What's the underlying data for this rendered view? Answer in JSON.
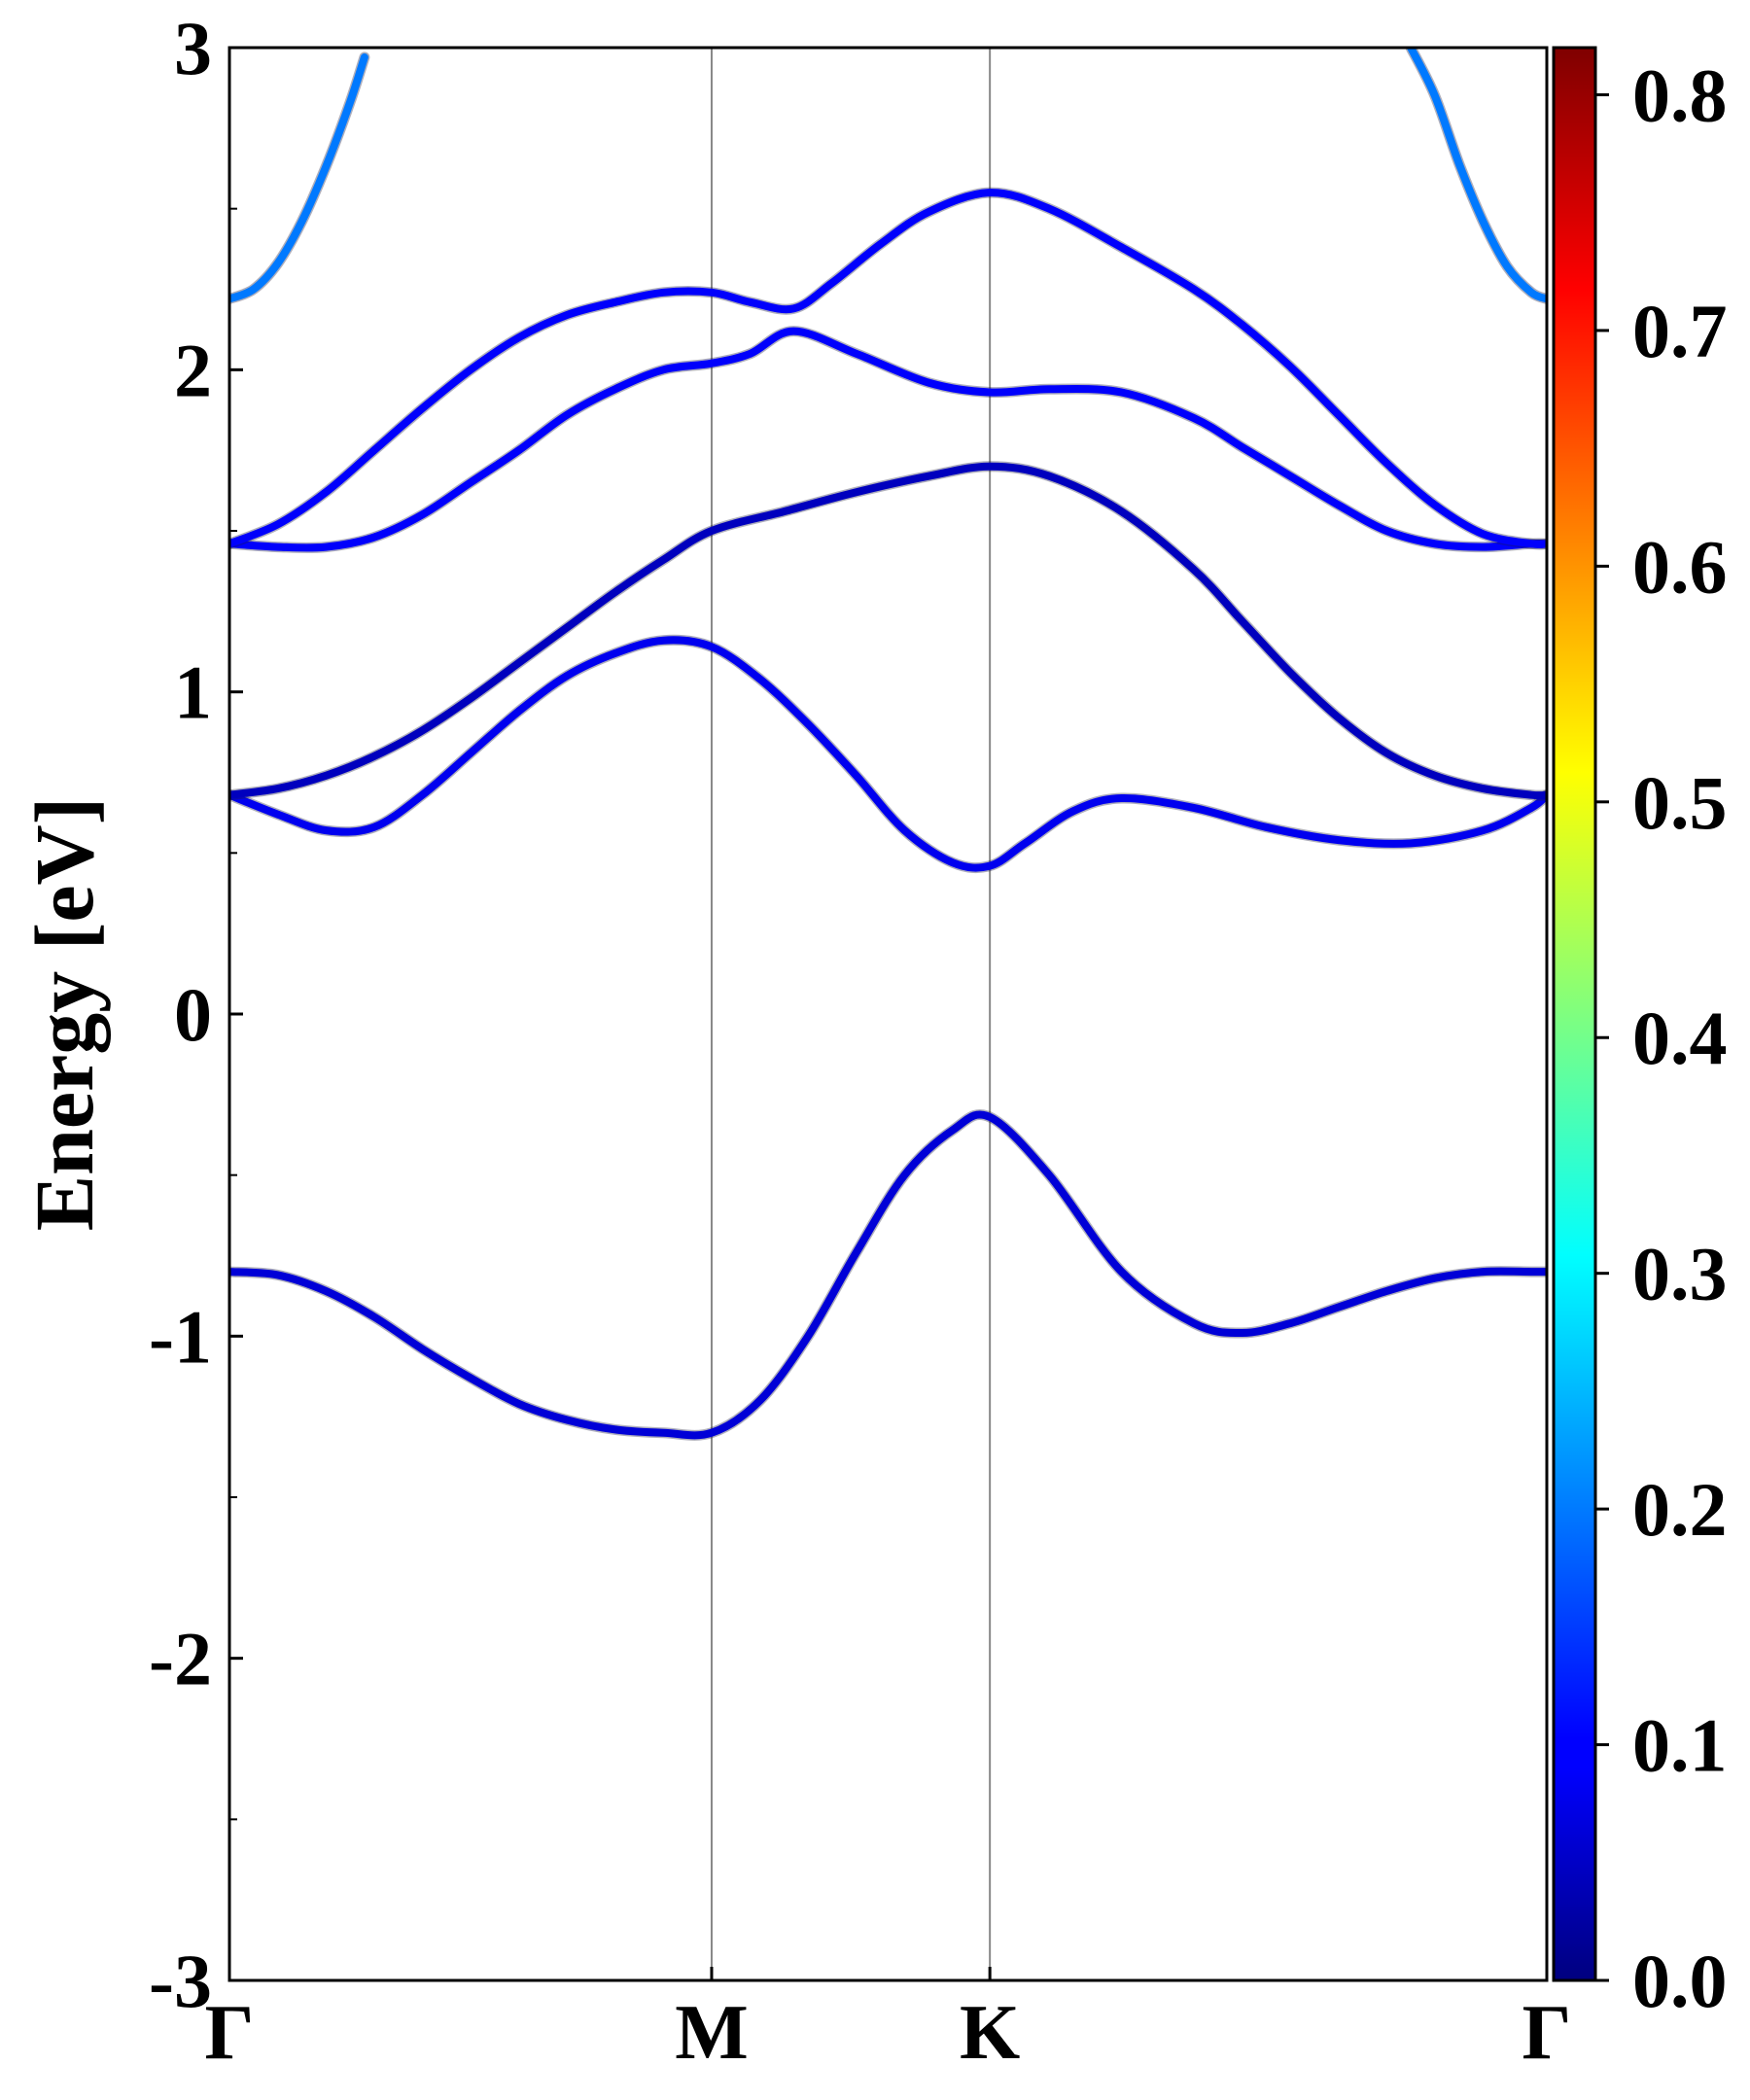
{
  "chart_data": {
    "type": "line",
    "ylabel": "Energy [eV]",
    "ylim": [
      -3,
      3
    ],
    "y_ticks": [
      "3",
      "2",
      "1",
      "0",
      "-1",
      "-2",
      "-3"
    ],
    "y_tick_values": [
      3,
      2,
      1,
      0,
      -1,
      -2,
      -3
    ],
    "x_ticks": [
      "Γ",
      "M",
      "K",
      "Γ"
    ],
    "x_tick_positions": [
      0,
      1,
      1.577,
      2.732
    ],
    "high_symmetry_lines": true,
    "colorbar": {
      "range": [
        0.0,
        0.82
      ],
      "ticks": [
        "0.0",
        "0.1",
        "0.2",
        "0.3",
        "0.4",
        "0.5",
        "0.6",
        "0.7",
        "0.8"
      ],
      "tick_values": [
        0.0,
        0.1,
        0.2,
        0.3,
        0.4,
        0.5,
        0.6,
        0.7,
        0.8
      ],
      "colormap": "jet"
    },
    "bands": [
      {
        "k": [
          0,
          0.1,
          0.2,
          0.3,
          0.4,
          0.5,
          0.6,
          0.7,
          0.8,
          0.9,
          1.0,
          1.1,
          1.2,
          1.3,
          1.4,
          1.5,
          1.577,
          1.7,
          1.85,
          2.0,
          2.1,
          2.2,
          2.3,
          2.4,
          2.5,
          2.6,
          2.7,
          2.732
        ],
        "energy": [
          -0.8,
          -0.81,
          -0.86,
          -0.94,
          -1.04,
          -1.13,
          -1.21,
          -1.26,
          -1.29,
          -1.3,
          -1.3,
          -1.2,
          -1.0,
          -0.74,
          -0.5,
          -0.36,
          -0.32,
          -0.5,
          -0.8,
          -0.96,
          -0.99,
          -0.96,
          -0.91,
          -0.86,
          -0.82,
          -0.8,
          -0.8,
          -0.8
        ],
        "weight": 0.07
      },
      {
        "k": [
          0,
          0.1,
          0.2,
          0.3,
          0.4,
          0.5,
          0.6,
          0.7,
          0.8,
          0.9,
          1.0,
          1.1,
          1.2,
          1.3,
          1.4,
          1.5,
          1.577,
          1.65,
          1.75,
          1.85,
          2.0,
          2.15,
          2.3,
          2.45,
          2.6,
          2.7,
          2.732
        ],
        "energy": [
          0.68,
          0.62,
          0.57,
          0.58,
          0.68,
          0.81,
          0.94,
          1.05,
          1.12,
          1.16,
          1.14,
          1.04,
          0.9,
          0.74,
          0.57,
          0.47,
          0.46,
          0.53,
          0.63,
          0.67,
          0.64,
          0.58,
          0.54,
          0.53,
          0.57,
          0.64,
          0.68
        ],
        "weight": 0.09
      },
      {
        "k": [
          0,
          0.1,
          0.2,
          0.3,
          0.4,
          0.5,
          0.6,
          0.7,
          0.8,
          0.9,
          1.0,
          1.15,
          1.3,
          1.45,
          1.577,
          1.7,
          1.85,
          2.0,
          2.1,
          2.2,
          2.3,
          2.4,
          2.5,
          2.6,
          2.7,
          2.732
        ],
        "energy": [
          0.68,
          0.7,
          0.74,
          0.8,
          0.88,
          0.98,
          1.09,
          1.2,
          1.31,
          1.41,
          1.5,
          1.56,
          1.62,
          1.67,
          1.7,
          1.67,
          1.56,
          1.38,
          1.22,
          1.06,
          0.92,
          0.81,
          0.74,
          0.7,
          0.68,
          0.68
        ],
        "weight": 0.05
      },
      {
        "k": [
          0,
          0.1,
          0.2,
          0.3,
          0.4,
          0.5,
          0.6,
          0.7,
          0.8,
          0.9,
          1.0,
          1.08,
          1.17,
          1.3,
          1.45,
          1.577,
          1.7,
          1.85,
          2.0,
          2.1,
          2.2,
          2.3,
          2.4,
          2.5,
          2.6,
          2.7,
          2.732
        ],
        "energy": [
          1.46,
          1.45,
          1.45,
          1.48,
          1.55,
          1.65,
          1.75,
          1.86,
          1.94,
          2.0,
          2.02,
          2.05,
          2.12,
          2.05,
          1.96,
          1.93,
          1.94,
          1.93,
          1.85,
          1.76,
          1.67,
          1.58,
          1.5,
          1.46,
          1.45,
          1.46,
          1.46
        ],
        "weight": 0.1
      },
      {
        "k": [
          0,
          0.1,
          0.2,
          0.3,
          0.4,
          0.5,
          0.6,
          0.7,
          0.8,
          0.9,
          1.0,
          1.08,
          1.17,
          1.25,
          1.35,
          1.45,
          1.577,
          1.7,
          1.85,
          2.0,
          2.1,
          2.2,
          2.3,
          2.4,
          2.5,
          2.6,
          2.7,
          2.732
        ],
        "energy": [
          1.46,
          1.52,
          1.62,
          1.75,
          1.88,
          2.0,
          2.1,
          2.17,
          2.21,
          2.24,
          2.24,
          2.21,
          2.19,
          2.27,
          2.39,
          2.49,
          2.55,
          2.5,
          2.38,
          2.25,
          2.14,
          2.01,
          1.86,
          1.71,
          1.58,
          1.49,
          1.46,
          1.46
        ],
        "weight": 0.1
      },
      {
        "k": [
          0,
          0.05,
          0.1,
          0.15,
          0.2,
          0.25,
          0.28,
          2.45,
          2.5,
          2.55,
          2.6,
          2.65,
          2.7,
          2.732
        ],
        "energy": [
          2.22,
          2.25,
          2.33,
          2.46,
          2.63,
          2.83,
          2.97,
          3.0,
          2.85,
          2.64,
          2.46,
          2.32,
          2.24,
          2.22
        ],
        "weight": 0.2
      }
    ]
  }
}
